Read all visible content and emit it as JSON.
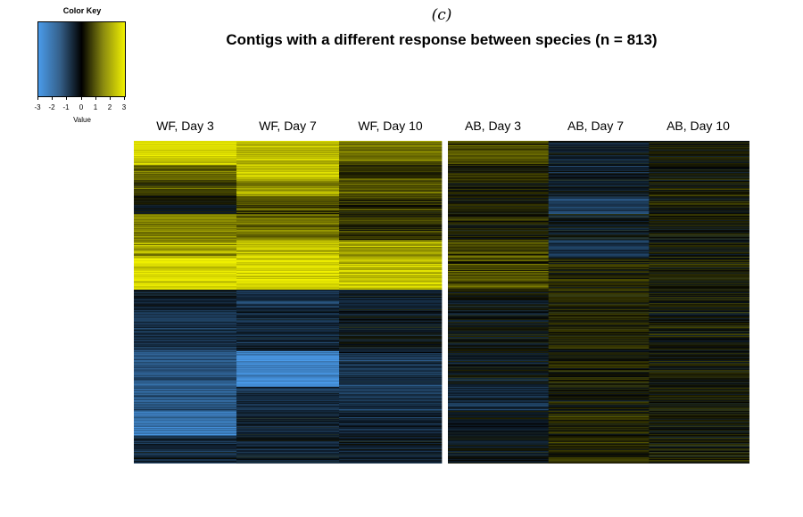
{
  "panel_label": "(c)",
  "color_key": {
    "title": "Color Key",
    "xlabel": "Value",
    "ticks": [
      "-3",
      "-2",
      "-1",
      "0",
      "1",
      "2",
      "3"
    ],
    "low_color": "#4a9bea",
    "mid_color": "#000000",
    "high_color": "#f0f000"
  },
  "chart_data": {
    "type": "heatmap",
    "title": "Contigs with a different response between species (n = 813)",
    "columns": [
      "WF, Day 3",
      "WF, Day 7",
      "WF, Day 10",
      "AB, Day 3",
      "AB, Day 7",
      "AB, Day 10"
    ],
    "column_gap_after": "WF, Day 10",
    "n_rows": 813,
    "value_range": [
      -3,
      3
    ],
    "block_profiles": [
      {
        "rows": 60,
        "values": [
          2.8,
          2.4,
          1.4,
          1.0,
          -0.5,
          0.1
        ]
      },
      {
        "rows": 35,
        "values": [
          1.3,
          2.6,
          0.4,
          0.3,
          -0.6,
          0.0
        ]
      },
      {
        "rows": 45,
        "values": [
          0.8,
          1.8,
          1.2,
          0.3,
          -0.4,
          0.2
        ]
      },
      {
        "rows": 45,
        "values": [
          0.0,
          1.0,
          0.6,
          0.2,
          -1.2,
          0.0
        ]
      },
      {
        "rows": 65,
        "values": [
          1.6,
          1.4,
          0.5,
          0.3,
          -0.3,
          0.1
        ]
      },
      {
        "rows": 45,
        "values": [
          2.0,
          2.4,
          2.0,
          0.8,
          -0.8,
          0.0
        ]
      },
      {
        "rows": 80,
        "values": [
          2.7,
          2.7,
          2.4,
          0.9,
          0.3,
          0.2
        ]
      },
      {
        "rows": 50,
        "values": [
          -0.7,
          -1.0,
          -0.6,
          -0.2,
          0.2,
          0.2
        ]
      },
      {
        "rows": 105,
        "values": [
          -1.0,
          -0.7,
          -0.3,
          -0.2,
          0.3,
          0.1
        ]
      },
      {
        "rows": 90,
        "values": [
          -1.6,
          -2.7,
          -0.9,
          -0.3,
          0.3,
          0.1
        ]
      },
      {
        "rows": 60,
        "values": [
          -1.6,
          -0.9,
          -1.0,
          -0.8,
          0.2,
          0.1
        ]
      },
      {
        "rows": 63,
        "values": [
          -2.3,
          -0.6,
          -0.7,
          -0.3,
          0.4,
          0.1
        ]
      },
      {
        "rows": 70,
        "values": [
          -0.8,
          -0.5,
          -0.5,
          -0.3,
          0.5,
          0.3
        ]
      }
    ]
  }
}
